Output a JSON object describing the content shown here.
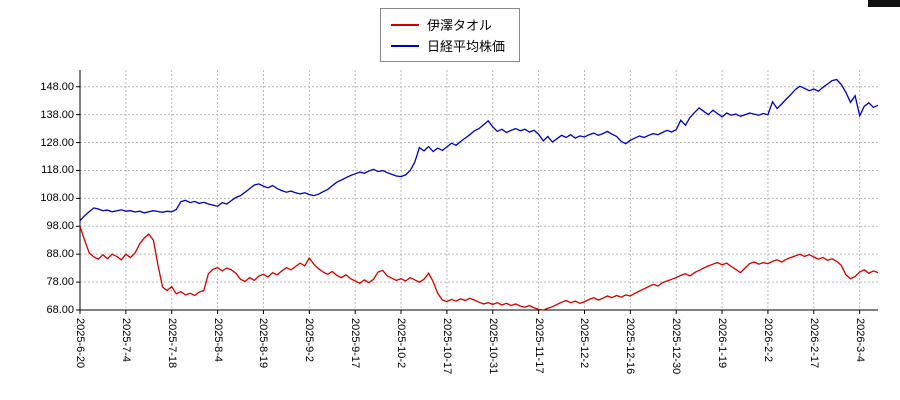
{
  "page": {
    "background": "#ffffff",
    "axis_color": "#000000",
    "grid_color": "#b8b8b8"
  },
  "legend": {
    "position": "top-center",
    "items": [
      {
        "label": "伊澤タオル",
        "color": "#cc0000"
      },
      {
        "label": "日経平均株価",
        "color": "#0000bb"
      }
    ]
  },
  "chart_data": {
    "type": "line",
    "title": "",
    "xlabel": "",
    "ylabel": "",
    "grid": "dotted",
    "legend_position": "top-center",
    "ylim": [
      68,
      154
    ],
    "y_ticks": [
      68,
      78,
      88,
      98,
      108,
      118,
      128,
      138,
      148
    ],
    "y_tick_labels": [
      "68.00",
      "78.00",
      "88.00",
      "98.00",
      "108.00",
      "118.00",
      "128.00",
      "138.00",
      "148.00"
    ],
    "x_tick_labels": [
      "2025-6-20",
      "2025-7-4",
      "2025-7-18",
      "2025-8-4",
      "2025-8-19",
      "2025-9-2",
      "2025-9-17",
      "2025-10-2",
      "2025-10-17",
      "2025-10-31",
      "2025-11-17",
      "2025-12-2",
      "2025-12-16",
      "2025-12-30",
      "2026-1-19",
      "2026-2-2",
      "2026-2-17",
      "2026-3-4"
    ],
    "points_per_tick": 10,
    "series": [
      {
        "name": "伊澤タオル",
        "color": "#cc0000",
        "values": [
          98.0,
          93.0,
          88.5,
          87.0,
          86.2,
          87.8,
          86.4,
          88.0,
          87.2,
          86.0,
          88.0,
          86.8,
          88.4,
          91.6,
          93.8,
          95.2,
          93.0,
          84.0,
          76.2,
          75.0,
          76.4,
          73.8,
          74.6,
          73.4,
          74.0,
          73.2,
          74.4,
          75.0,
          81.0,
          82.6,
          83.2,
          82.0,
          83.0,
          82.4,
          81.2,
          79.0,
          78.2,
          79.6,
          78.6,
          80.2,
          80.8,
          79.8,
          81.4,
          80.6,
          82.0,
          83.2,
          82.4,
          83.6,
          84.8,
          83.8,
          86.6,
          84.4,
          82.8,
          81.6,
          80.8,
          81.8,
          80.4,
          79.6,
          80.6,
          79.2,
          78.4,
          77.6,
          78.8,
          77.8,
          79.0,
          81.6,
          82.2,
          80.2,
          79.4,
          78.6,
          79.2,
          78.4,
          79.6,
          78.8,
          78.0,
          79.0,
          81.2,
          78.2,
          74.0,
          71.6,
          71.0,
          71.8,
          71.2,
          72.0,
          71.4,
          72.2,
          71.6,
          70.8,
          70.2,
          70.6,
          70.0,
          70.6,
          69.8,
          70.4,
          69.6,
          70.2,
          69.4,
          69.0,
          69.6,
          68.8,
          68.2,
          68.0,
          68.6,
          69.2,
          70.0,
          70.8,
          71.4,
          70.6,
          71.2,
          70.4,
          71.0,
          71.8,
          72.4,
          71.6,
          72.2,
          73.0,
          72.4,
          73.2,
          72.6,
          73.4,
          73.0,
          74.0,
          74.8,
          75.6,
          76.4,
          77.2,
          76.6,
          77.8,
          78.4,
          79.0,
          79.6,
          80.4,
          81.0,
          80.2,
          81.4,
          82.2,
          83.0,
          83.8,
          84.4,
          85.0,
          84.2,
          84.8,
          83.6,
          82.6,
          81.4,
          83.0,
          84.6,
          85.2,
          84.4,
          85.0,
          84.6,
          85.4,
          86.0,
          85.2,
          86.2,
          86.8,
          87.4,
          88.0,
          87.2,
          87.8,
          87.0,
          86.2,
          86.8,
          85.8,
          86.4,
          85.4,
          84.0,
          80.6,
          79.2,
          80.0,
          81.6,
          82.4,
          81.2,
          82.0,
          81.4
        ]
      },
      {
        "name": "日経平均株価",
        "color": "#0000bb",
        "values": [
          100.0,
          101.8,
          103.2,
          104.6,
          104.2,
          103.6,
          103.8,
          103.2,
          103.5,
          103.9,
          103.4,
          103.6,
          103.1,
          103.4,
          102.8,
          103.2,
          103.6,
          103.3,
          103.0,
          103.4,
          103.2,
          104.0,
          106.8,
          107.3,
          106.5,
          106.9,
          106.2,
          106.6,
          106.0,
          105.6,
          105.2,
          106.5,
          106.0,
          107.2,
          108.3,
          109.0,
          110.2,
          111.5,
          112.8,
          113.2,
          112.4,
          111.8,
          112.6,
          111.5,
          110.8,
          110.2,
          110.6,
          110.0,
          109.6,
          110.0,
          109.4,
          109.0,
          109.5,
          110.4,
          111.2,
          112.5,
          113.8,
          114.6,
          115.4,
          116.2,
          116.8,
          117.4,
          117.0,
          117.8,
          118.4,
          117.6,
          118.0,
          117.2,
          116.6,
          116.0,
          115.8,
          116.4,
          118.0,
          121.0,
          126.2,
          125.0,
          126.6,
          124.8,
          126.0,
          125.2,
          126.4,
          127.8,
          127.0,
          128.4,
          129.6,
          130.8,
          132.2,
          133.0,
          134.4,
          135.8,
          133.6,
          132.0,
          132.8,
          131.6,
          132.4,
          133.0,
          132.2,
          132.8,
          131.8,
          132.4,
          131.0,
          128.6,
          130.2,
          128.2,
          129.4,
          130.6,
          129.8,
          130.8,
          129.6,
          130.4,
          130.0,
          130.8,
          131.4,
          130.6,
          131.2,
          132.0,
          131.0,
          130.2,
          128.4,
          127.6,
          128.8,
          129.6,
          130.4,
          129.8,
          130.6,
          131.2,
          130.8,
          131.6,
          132.4,
          131.8,
          132.6,
          136.0,
          134.2,
          137.0,
          138.8,
          140.4,
          139.2,
          138.0,
          139.6,
          138.4,
          137.2,
          138.6,
          137.8,
          138.2,
          137.4,
          138.0,
          138.6,
          138.2,
          137.8,
          138.4,
          138.0,
          142.6,
          140.2,
          141.8,
          143.6,
          145.2,
          147.0,
          148.2,
          147.4,
          146.6,
          147.2,
          146.4,
          147.8,
          149.0,
          150.2,
          150.6,
          148.8,
          146.0,
          142.4,
          144.8,
          137.6,
          141.0,
          142.2,
          140.6,
          141.4
        ]
      }
    ]
  }
}
